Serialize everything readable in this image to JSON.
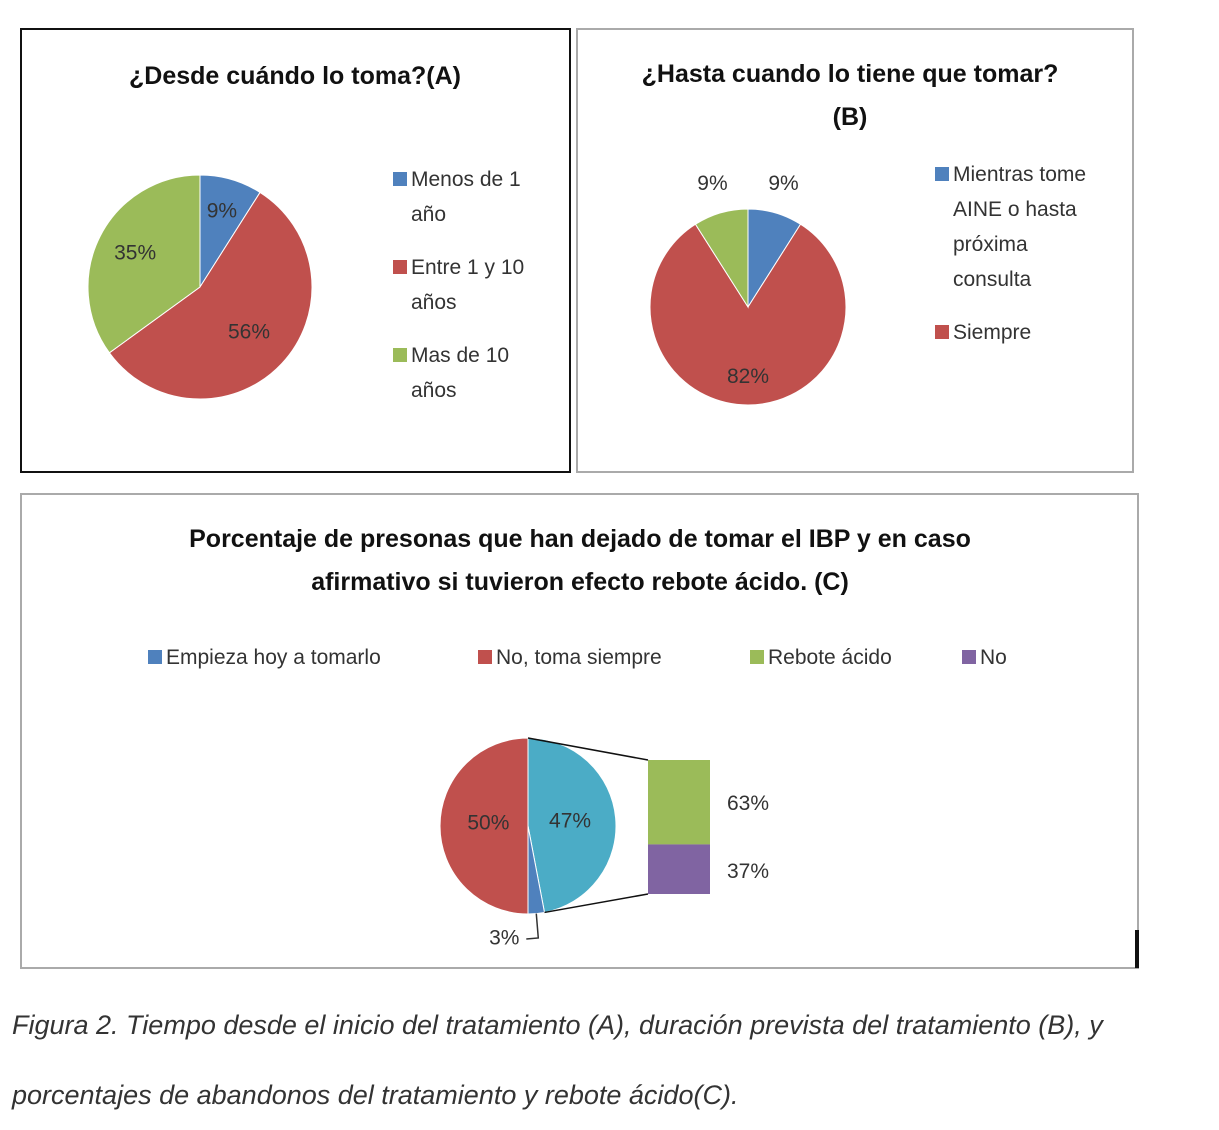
{
  "chart_data": [
    {
      "type": "pie",
      "title": "¿Desde cuándo lo toma?(A)",
      "categories": [
        "Menos de 1 año",
        "Entre 1 y 10 años",
        "Mas de 10 años"
      ],
      "values": [
        9,
        56,
        35
      ],
      "value_labels": [
        "9%",
        "56%",
        "35%"
      ],
      "colors": [
        "#4f81bd",
        "#c0504d",
        "#9bbb59"
      ],
      "legend": "right"
    },
    {
      "type": "pie",
      "title": "¿Hasta cuando lo tiene que tomar? (B)",
      "categories": [
        "Mientras tome AINE o hasta próxima consulta",
        "Siempre",
        null
      ],
      "values": [
        9,
        82,
        9
      ],
      "value_labels": [
        "9%",
        "82%",
        "9%"
      ],
      "colors": [
        "#4f81bd",
        "#c0504d",
        "#9bbb59"
      ],
      "legend": "right"
    },
    {
      "type": "bar-of-pie",
      "title": "Porcentaje de presonas que han dejado de tomar el IBP y en caso afirmativo si tuvieron efecto rebote ácido. (C)",
      "categories": [
        "Empieza hoy a tomarlo",
        "No, toma  siempre",
        "Rebote ácido",
        "No"
      ],
      "values": [
        3,
        50,
        63,
        37
      ],
      "value_labels": [
        "3%",
        "50%",
        "63%",
        "37%"
      ],
      "colors": [
        "#4f81bd",
        "#c0504d",
        "#9bbb59",
        "#8064a2"
      ],
      "other": {
        "value": 47,
        "label": "47%",
        "color": "#4bacc6"
      },
      "legend": "top"
    }
  ],
  "caption": "Figura 2. Tiempo desde el inicio del tratamiento (A), duración prevista del tratamiento (B), y porcentajes de abandonos del tratamiento y rebote ácido(C)."
}
